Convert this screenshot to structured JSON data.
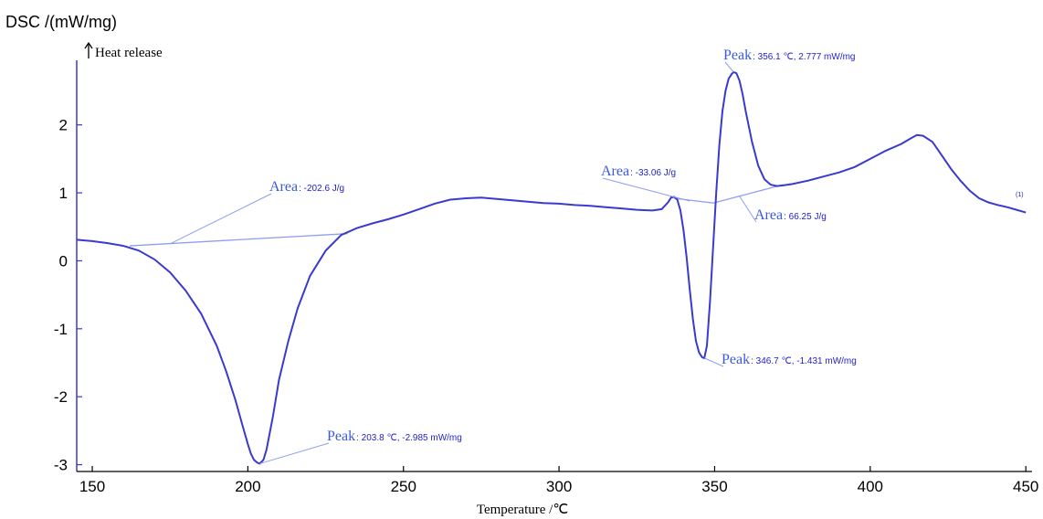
{
  "chart_data": {
    "type": "line",
    "ylabel": "DSC /(mW/mg)",
    "xlabel": "Temperature /℃",
    "heat_release_label": "Heat release",
    "heat_release_icon": "up-arrow-icon",
    "xlim": [
      145,
      452
    ],
    "ylim": [
      -3.1,
      2.95
    ],
    "xticks": [
      150,
      200,
      250,
      300,
      350,
      400,
      450
    ],
    "yticks": [
      -3,
      -2,
      -1,
      0,
      1,
      2
    ],
    "line_color": "#3a3ad0",
    "baseline_color": "#8f9ff0",
    "curve_tag": "(1)",
    "series": [
      {
        "x": [
          145,
          150,
          155,
          160,
          165,
          170,
          175,
          180,
          185,
          190,
          193,
          196,
          198,
          200,
          201,
          202,
          203,
          203.8,
          205,
          206,
          208,
          210,
          213,
          216,
          220,
          225,
          230,
          235,
          240,
          245,
          250,
          255,
          260,
          265,
          270,
          275,
          280,
          285,
          290,
          295,
          300,
          305,
          310,
          315,
          320,
          325,
          330,
          333,
          335,
          336,
          337,
          338,
          339,
          340,
          341,
          342,
          343,
          344,
          345,
          346,
          346.7,
          347.5,
          348.5,
          349.5,
          350.5,
          351.5,
          352.5,
          353.5,
          354.5,
          355.5,
          356.1,
          357,
          358,
          359,
          360,
          362,
          364,
          366,
          368,
          370,
          372,
          375,
          380,
          385,
          390,
          395,
          400,
          405,
          410,
          413,
          415,
          417,
          420,
          423,
          426,
          429,
          432,
          435,
          438,
          441,
          444,
          447,
          450
        ],
        "y": [
          0.31,
          0.29,
          0.26,
          0.22,
          0.15,
          0.02,
          -0.17,
          -0.44,
          -0.78,
          -1.25,
          -1.62,
          -2.05,
          -2.38,
          -2.7,
          -2.84,
          -2.93,
          -2.97,
          -2.985,
          -2.93,
          -2.78,
          -2.3,
          -1.75,
          -1.18,
          -0.7,
          -0.22,
          0.15,
          0.38,
          0.48,
          0.55,
          0.61,
          0.68,
          0.76,
          0.84,
          0.9,
          0.92,
          0.93,
          0.91,
          0.89,
          0.87,
          0.85,
          0.84,
          0.82,
          0.81,
          0.79,
          0.77,
          0.75,
          0.74,
          0.76,
          0.86,
          0.93,
          0.94,
          0.9,
          0.74,
          0.45,
          0.05,
          -0.42,
          -0.85,
          -1.18,
          -1.35,
          -1.42,
          -1.431,
          -1.25,
          -0.6,
          0.2,
          1.0,
          1.7,
          2.2,
          2.5,
          2.68,
          2.75,
          2.777,
          2.76,
          2.65,
          2.45,
          2.2,
          1.75,
          1.4,
          1.2,
          1.12,
          1.1,
          1.11,
          1.13,
          1.18,
          1.24,
          1.3,
          1.38,
          1.5,
          1.62,
          1.72,
          1.8,
          1.85,
          1.84,
          1.75,
          1.55,
          1.35,
          1.18,
          1.03,
          0.92,
          0.86,
          0.82,
          0.79,
          0.75,
          0.71
        ]
      }
    ],
    "baselines": [
      {
        "x": [
          162,
          232
        ],
        "y": [
          0.22,
          0.4
        ]
      },
      {
        "x": [
          337,
          349.5
        ],
        "y": [
          0.92,
          0.85
        ]
      },
      {
        "x": [
          349.5,
          372
        ],
        "y": [
          0.85,
          1.12
        ]
      }
    ],
    "annotations": [
      {
        "key": "Peak",
        "text": ": 203.8 ℃, -2.985 mW/mg",
        "x": 203.8,
        "y": -2.985
      },
      {
        "key": "Peak",
        "text": ": 346.7 ℃, -1.431 mW/mg",
        "x": 346.7,
        "y": -1.431
      },
      {
        "key": "Peak",
        "text": ": 356.1 ℃, 2.777 mW/mg",
        "x": 356.1,
        "y": 2.777
      },
      {
        "key": "Area",
        "text": ": -202.6 J/g",
        "x": 175,
        "y": 0.25
      },
      {
        "key": "Area",
        "text": ": -33.06 J/g",
        "x": 342,
        "y": 0.88
      },
      {
        "key": "Area",
        "text": ": 66.25 J/g",
        "x": 358,
        "y": 0.95
      }
    ]
  }
}
